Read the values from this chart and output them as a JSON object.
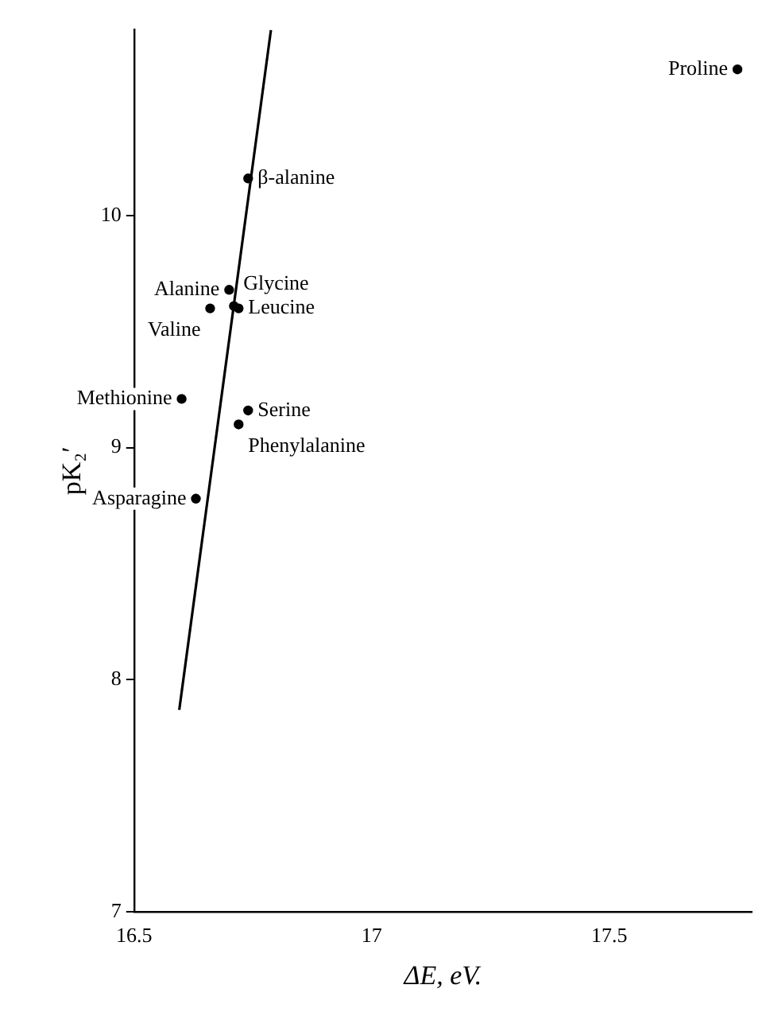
{
  "chart_data": {
    "type": "scatter",
    "xlabel": "ΔE, eV.",
    "ylabel": "pK₂′",
    "xlim": [
      16.5,
      17.8
    ],
    "xticks": [
      16.5,
      17,
      17.5
    ],
    "ylim": [
      7,
      10.8
    ],
    "yticks": [
      7,
      8,
      9,
      10
    ],
    "grid": false,
    "legend": false,
    "marker": "circle",
    "series": [
      {
        "type": "scatter",
        "color": "#000000",
        "x": [
          16.74,
          16.7,
          16.71,
          16.66,
          16.72,
          16.6,
          16.74,
          16.72,
          16.63,
          17.77
        ],
        "values": [
          10.16,
          9.68,
          9.61,
          9.6,
          9.6,
          9.21,
          9.16,
          9.1,
          8.78,
          10.63
        ]
      },
      {
        "type": "line",
        "color": "#000000",
        "marker": "none",
        "x": [
          16.595,
          16.788
        ],
        "values": [
          7.87,
          10.8
        ]
      }
    ],
    "annotations": [
      {
        "text": "β-alanine",
        "x": 16.74,
        "y": 10.16
      },
      {
        "text": "Alanine",
        "x": 16.7,
        "y": 9.68
      },
      {
        "text": "Glycine",
        "x": 16.71,
        "y": 9.61
      },
      {
        "text": "Valine",
        "x": 16.66,
        "y": 9.6
      },
      {
        "text": "Leucine",
        "x": 16.72,
        "y": 9.6
      },
      {
        "text": "Methionine",
        "x": 16.6,
        "y": 9.21
      },
      {
        "text": "Serine",
        "x": 16.74,
        "y": 9.16
      },
      {
        "text": "Phenylalanine",
        "x": 16.72,
        "y": 9.1
      },
      {
        "text": "Asparagine",
        "x": 16.63,
        "y": 8.78
      },
      {
        "text": "Proline",
        "x": 17.77,
        "y": 10.63
      }
    ]
  }
}
